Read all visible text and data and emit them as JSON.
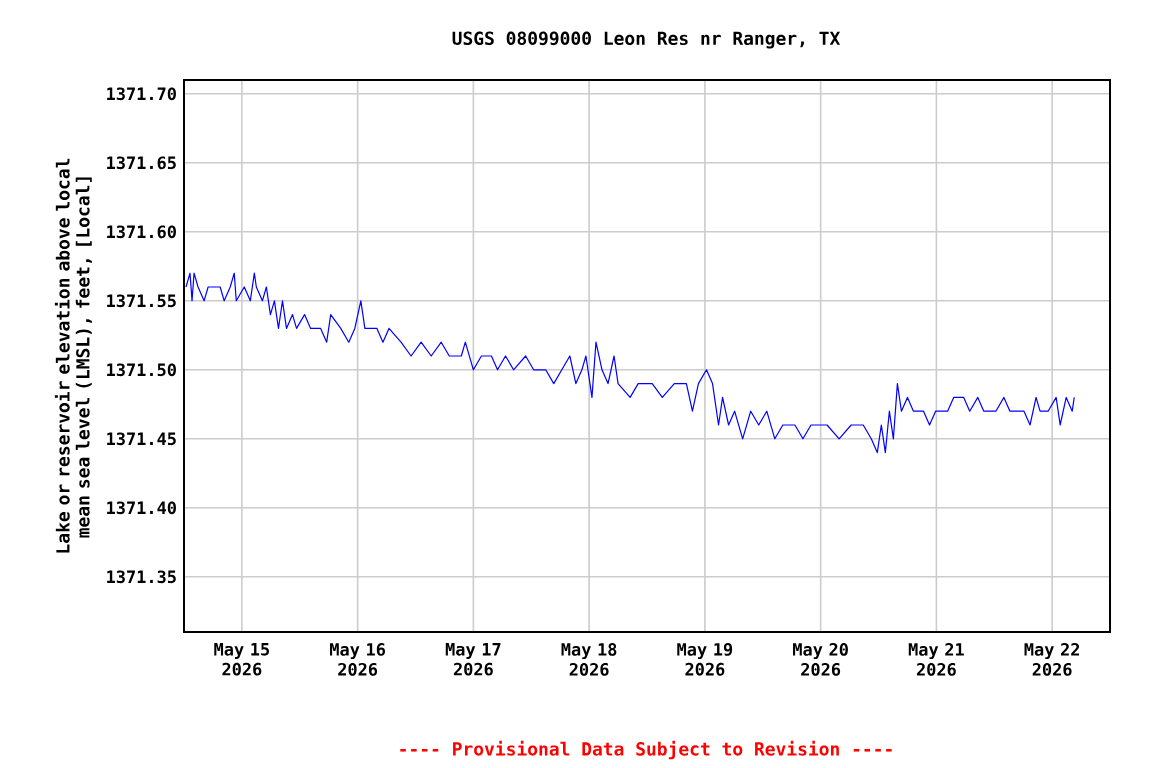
{
  "chart_data": {
    "type": "line",
    "title": "USGS 08099000 Leon Res nr Ranger, TX",
    "ylabel": "Lake or reservoir elevation above local mean sea level (LMSL), feet, [Local]",
    "annotations": [
      "---- Provisional Data Subject to Revision ----"
    ],
    "xlim": [
      "2026-05-14T12:00",
      "2026-05-22T12:00"
    ],
    "ylim": [
      1371.31,
      1371.71
    ],
    "xticks": [
      {
        "value": "2026-05-15",
        "label": "May 15 2026"
      },
      {
        "value": "2026-05-16",
        "label": "May 16 2026"
      },
      {
        "value": "2026-05-17",
        "label": "May 17 2026"
      },
      {
        "value": "2026-05-18",
        "label": "May 18 2026"
      },
      {
        "value": "2026-05-19",
        "label": "May 19 2026"
      },
      {
        "value": "2026-05-20",
        "label": "May 20 2026"
      },
      {
        "value": "2026-05-21",
        "label": "May 21 2026"
      },
      {
        "value": "2026-05-22",
        "label": "May 22 2026"
      }
    ],
    "yticks": [
      {
        "value": 1371.35,
        "label": "1371.35"
      },
      {
        "value": 1371.4,
        "label": "1371.40"
      },
      {
        "value": 1371.45,
        "label": "1371.45"
      },
      {
        "value": 1371.5,
        "label": "1371.50"
      },
      {
        "value": 1371.55,
        "label": "1371.55"
      },
      {
        "value": 1371.6,
        "label": "1371.60"
      },
      {
        "value": 1371.65,
        "label": "1371.65"
      },
      {
        "value": 1371.7,
        "label": "1371.70"
      }
    ],
    "grid": true,
    "marker": "none",
    "line_style": "solid",
    "series": [
      {
        "color": "#0000ff",
        "x": [
          "2026-05-14T12:25",
          "2026-05-14T13:15",
          "2026-05-14T13:40",
          "2026-05-14T14:05",
          "2026-05-14T14:55",
          "2026-05-14T16:10",
          "2026-05-14T17:00",
          "2026-05-14T19:30",
          "2026-05-14T20:20",
          "2026-05-14T21:35",
          "2026-05-14T22:25",
          "2026-05-14T22:50",
          "2026-05-15T00:30",
          "2026-05-15T01:45",
          "2026-05-15T02:35",
          "2026-05-15T03:00",
          "2026-05-15T04:15",
          "2026-05-15T05:05",
          "2026-05-15T05:55",
          "2026-05-15T06:45",
          "2026-05-15T07:35",
          "2026-05-15T08:25",
          "2026-05-15T09:15",
          "2026-05-15T10:30",
          "2026-05-15T11:20",
          "2026-05-15T13:00",
          "2026-05-15T14:15",
          "2026-05-15T16:20",
          "2026-05-15T17:35",
          "2026-05-15T18:25",
          "2026-05-15T20:30",
          "2026-05-15T22:10",
          "2026-05-15T23:25",
          "2026-05-16T00:40",
          "2026-05-16T01:30",
          "2026-05-16T04:00",
          "2026-05-16T05:15",
          "2026-05-16T06:30",
          "2026-05-16T09:00",
          "2026-05-16T11:05",
          "2026-05-16T13:10",
          "2026-05-16T15:15",
          "2026-05-16T17:20",
          "2026-05-16T19:00",
          "2026-05-16T21:30",
          "2026-05-16T22:20",
          "2026-05-17T00:00",
          "2026-05-17T01:40",
          "2026-05-17T03:45",
          "2026-05-17T05:00",
          "2026-05-17T06:40",
          "2026-05-17T08:20",
          "2026-05-17T10:50",
          "2026-05-17T12:30",
          "2026-05-17T15:00",
          "2026-05-17T16:40",
          "2026-05-17T18:20",
          "2026-05-17T20:00",
          "2026-05-17T21:15",
          "2026-05-17T22:30",
          "2026-05-17T23:20",
          "2026-05-18T00:35",
          "2026-05-18T01:25",
          "2026-05-18T02:40",
          "2026-05-18T03:55",
          "2026-05-18T05:10",
          "2026-05-18T06:00",
          "2026-05-18T08:30",
          "2026-05-18T10:10",
          "2026-05-18T13:05",
          "2026-05-18T15:10",
          "2026-05-18T17:40",
          "2026-05-18T20:10",
          "2026-05-18T21:25",
          "2026-05-18T22:40",
          "2026-05-19T00:20",
          "2026-05-19T01:35",
          "2026-05-19T02:50",
          "2026-05-19T03:40",
          "2026-05-19T04:55",
          "2026-05-19T06:10",
          "2026-05-19T07:50",
          "2026-05-19T09:30",
          "2026-05-19T11:10",
          "2026-05-19T12:50",
          "2026-05-19T14:30",
          "2026-05-19T16:10",
          "2026-05-19T18:40",
          "2026-05-19T20:20",
          "2026-05-19T22:00",
          "2026-05-20T01:20",
          "2026-05-20T03:50",
          "2026-05-20T06:20",
          "2026-05-20T08:50",
          "2026-05-20T10:30",
          "2026-05-20T11:45",
          "2026-05-20T12:35",
          "2026-05-20T13:25",
          "2026-05-20T14:15",
          "2026-05-20T15:05",
          "2026-05-20T15:55",
          "2026-05-20T16:45",
          "2026-05-20T18:00",
          "2026-05-20T19:15",
          "2026-05-20T21:20",
          "2026-05-20T22:35",
          "2026-05-20T23:50",
          "2026-05-21T02:20",
          "2026-05-21T03:35",
          "2026-05-21T05:40",
          "2026-05-21T06:55",
          "2026-05-21T08:35",
          "2026-05-21T09:50",
          "2026-05-21T12:20",
          "2026-05-21T14:00",
          "2026-05-21T15:15",
          "2026-05-21T18:10",
          "2026-05-21T19:25",
          "2026-05-21T20:40",
          "2026-05-21T21:30",
          "2026-05-21T23:10",
          "2026-05-22T00:50",
          "2026-05-22T01:40",
          "2026-05-22T02:55",
          "2026-05-22T04:10",
          "2026-05-22T04:35"
        ],
        "values": [
          1371.56,
          1371.57,
          1371.55,
          1371.57,
          1371.56,
          1371.55,
          1371.56,
          1371.56,
          1371.55,
          1371.56,
          1371.57,
          1371.55,
          1371.56,
          1371.55,
          1371.57,
          1371.56,
          1371.55,
          1371.56,
          1371.54,
          1371.55,
          1371.53,
          1371.55,
          1371.53,
          1371.54,
          1371.53,
          1371.54,
          1371.53,
          1371.53,
          1371.52,
          1371.54,
          1371.53,
          1371.52,
          1371.53,
          1371.55,
          1371.53,
          1371.53,
          1371.52,
          1371.53,
          1371.52,
          1371.51,
          1371.52,
          1371.51,
          1371.52,
          1371.51,
          1371.51,
          1371.52,
          1371.5,
          1371.51,
          1371.51,
          1371.5,
          1371.51,
          1371.5,
          1371.51,
          1371.5,
          1371.5,
          1371.49,
          1371.5,
          1371.51,
          1371.49,
          1371.5,
          1371.51,
          1371.48,
          1371.52,
          1371.5,
          1371.49,
          1371.51,
          1371.49,
          1371.48,
          1371.49,
          1371.49,
          1371.48,
          1371.49,
          1371.49,
          1371.47,
          1371.49,
          1371.5,
          1371.49,
          1371.46,
          1371.48,
          1371.46,
          1371.47,
          1371.45,
          1371.47,
          1371.46,
          1371.47,
          1371.45,
          1371.46,
          1371.46,
          1371.45,
          1371.46,
          1371.46,
          1371.45,
          1371.46,
          1371.46,
          1371.45,
          1371.44,
          1371.46,
          1371.44,
          1371.47,
          1371.45,
          1371.49,
          1371.47,
          1371.48,
          1371.47,
          1371.47,
          1371.46,
          1371.47,
          1371.47,
          1371.48,
          1371.48,
          1371.47,
          1371.48,
          1371.47,
          1371.47,
          1371.48,
          1371.47,
          1371.47,
          1371.46,
          1371.48,
          1371.47,
          1371.47,
          1371.48,
          1371.46,
          1371.48,
          1371.47,
          1371.48
        ]
      }
    ]
  }
}
